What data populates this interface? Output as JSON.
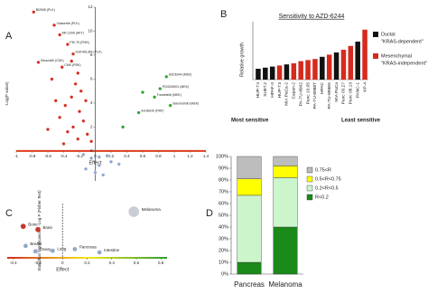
{
  "chart_data": [
    {
      "type": "scatter",
      "panel": "A",
      "x_label": "Effect",
      "y_label": "-Log(P value)",
      "xlim": [
        -1,
        1.4
      ],
      "xticks": [
        -1,
        -0.8,
        -0.6,
        -0.4,
        -0.2,
        0,
        0.2,
        0.4,
        0.6,
        0.8,
        1,
        1.2,
        1.4
      ],
      "ylim": [
        -2.5,
        12
      ],
      "yticks": [
        0,
        2,
        4,
        6,
        8,
        10,
        12
      ],
      "axis_color": "#e03b1e",
      "series": [
        {
          "color": "#d62a1e",
          "x": [
            -0.78,
            -0.52,
            -0.45,
            -0.35,
            -0.28,
            -0.72,
            -0.42,
            -0.3,
            -0.22,
            -0.55,
            -0.25,
            -0.18,
            -0.3,
            -0.12,
            -0.38,
            -0.2,
            -0.45,
            -0.15,
            -0.28,
            -0.35,
            -0.1,
            -0.22,
            -0.05,
            -0.4,
            -0.6,
            -0.5
          ],
          "values": [
            11.6,
            10.5,
            9.7,
            8.9,
            8.1,
            7.4,
            7.0,
            7.5,
            6.5,
            6.0,
            5.6,
            5.0,
            4.5,
            4.2,
            3.8,
            3.3,
            2.8,
            2.5,
            2.0,
            1.6,
            1.4,
            1.0,
            0.8,
            0.6,
            1.8,
            4.2
          ],
          "labels": [
            "BI2536 (PLK)",
            "Volasertib (PLK)",
            "MK-2206 (AKT)",
            "PIK-75 (PI3K)",
            "GSK461364 (PLK)",
            "Dinaciclib (CDK)",
            "CMK (RSK)",
            null,
            null,
            null,
            null,
            null,
            null,
            null,
            null,
            null,
            null,
            null,
            null,
            null,
            null,
            null,
            null,
            null,
            null,
            null
          ]
        },
        {
          "color": "#2e9e2e",
          "x": [
            0.9,
            0.82,
            0.75,
            0.95,
            0.55,
            0.35,
            0.6
          ],
          "values": [
            6.2,
            5.2,
            4.5,
            3.8,
            3.2,
            2.0,
            4.9
          ],
          "labels": [
            "AZD6244 (MEK)",
            "PD0325901 (MEK)",
            "Trametinib (MEK)",
            "Selumetinib (MEK)",
            "Sorafenib (RAF)",
            null,
            null
          ]
        },
        {
          "color": "#8aa4cc",
          "x": [
            -0.05,
            0.05,
            0.15,
            -0.12,
            0.1,
            0.2,
            0.0,
            -0.15,
            0.3,
            0.05
          ],
          "values": [
            -0.6,
            -1.2,
            -0.4,
            -1.5,
            -2.0,
            -0.9,
            -1.8,
            -0.3,
            -1.1,
            -0.5
          ],
          "labels": [
            null,
            null,
            null,
            null,
            null,
            null,
            null,
            null,
            null,
            null
          ]
        }
      ]
    },
    {
      "type": "bar",
      "panel": "B",
      "title": "Sensitivity to AZD-6244",
      "y_label": "Relative growth",
      "ylim": [
        0,
        1
      ],
      "categories": [
        "HUP-T4",
        "SU8T.2",
        "HPAF-II",
        "HUP-T3",
        "MIA PaCa-2",
        "Capan-2",
        "PA-TU-8902",
        "Panc 10.05",
        "PA-TU-8988T",
        "HPAC",
        "PA-TU-8988S",
        "MIA PaCa",
        "Panc 03.27",
        "Panc 08.13",
        "PANC-1",
        "KP-4"
      ],
      "values": [
        0.2,
        0.22,
        0.24,
        0.26,
        0.28,
        0.3,
        0.34,
        0.36,
        0.38,
        0.42,
        0.46,
        0.5,
        0.55,
        0.62,
        0.7,
        0.92
      ],
      "colors": [
        "#111111",
        "#111111",
        "#111111",
        "#d62a1e",
        "#111111",
        "#d62a1e",
        "#d62a1e",
        "#d62a1e",
        "#d62a1e",
        "#111111",
        "#d62a1e",
        "#111111",
        "#d62a1e",
        "#d62a1e",
        "#111111",
        "#d62a1e"
      ],
      "legend": [
        {
          "color": "#111111",
          "label": "Ductal",
          "sublabel": "\"KRAS-dependent\""
        },
        {
          "color": "#d62a1e",
          "label": "Mesenchymal",
          "sublabel": "\"KRAS-independent\""
        }
      ],
      "annotations": [
        "Most sensitive",
        "Least sensitive"
      ]
    },
    {
      "type": "scatter",
      "panel": "C",
      "x_label": "Effect",
      "y_label": "Statistical Significance = -Log P (Fisher Test)",
      "xlim": [
        -0.45,
        0.85
      ],
      "xticks": [
        -0.4,
        -0.2,
        0,
        0.2,
        0.4,
        0.6,
        0.8
      ],
      "ylim": [
        0,
        10
      ],
      "yticks": [],
      "axis_gradient": [
        "#d62a1e",
        "#f5e61e",
        "#2e9e2e"
      ],
      "series": [
        {
          "color": "#c0392b",
          "x": [
            -0.2,
            -0.32
          ],
          "values": [
            5.2,
            5.8
          ],
          "sizes": [
            3,
            3
          ],
          "labels": [
            "Brain",
            "Bone"
          ]
        },
        {
          "color": "#8fa8c8",
          "x": [
            -0.3,
            -0.22,
            -0.08,
            0.1,
            0.3
          ],
          "values": [
            2.2,
            1.2,
            1.3,
            1.6,
            1.0
          ],
          "sizes": [
            2.5,
            2.5,
            2.5,
            2.5,
            2.5
          ],
          "labels": [
            "Breast",
            "Ovary",
            "Lung",
            "Pancreas",
            "Intestine"
          ]
        },
        {
          "color": "#c8cdd6",
          "x": [
            0.58
          ],
          "values": [
            8.5
          ],
          "sizes": [
            6
          ],
          "labels": [
            "Melanoma"
          ]
        }
      ]
    },
    {
      "type": "stacked_bar",
      "panel": "D",
      "categories": [
        "Pancreas",
        "Melanoma"
      ],
      "ylim": [
        0,
        100
      ],
      "yticks": [
        {
          "value": 0,
          "label": "0%"
        },
        {
          "value": 10,
          "label": "10%"
        },
        {
          "value": 20,
          "label": "20%"
        },
        {
          "value": 30,
          "label": "30%"
        },
        {
          "value": 40,
          "label": "40%"
        },
        {
          "value": 50,
          "label": "50%"
        },
        {
          "value": 60,
          "label": "60%"
        },
        {
          "value": 70,
          "label": "70%"
        },
        {
          "value": 80,
          "label": "80%"
        },
        {
          "value": 90,
          "label": "90%"
        },
        {
          "value": 100,
          "label": "100%"
        }
      ],
      "series": [
        {
          "name": "R<0.2",
          "color": "#1a8a1a",
          "values": [
            10,
            40
          ]
        },
        {
          "name": "0.2<R<0.5",
          "color": "#ccf5cc",
          "values": [
            57,
            42
          ]
        },
        {
          "name": "0.5<R<0.75",
          "color": "#ffff00",
          "values": [
            14,
            10
          ]
        },
        {
          "name": "0.75<R",
          "color": "#bdbdbd",
          "values": [
            19,
            8
          ]
        }
      ]
    }
  ]
}
